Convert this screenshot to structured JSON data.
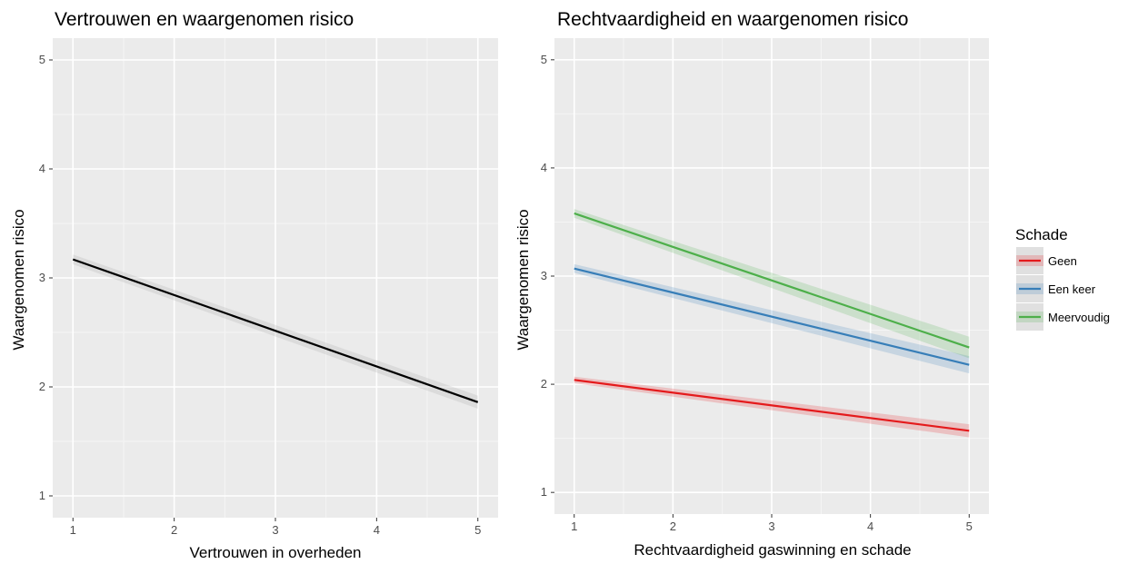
{
  "chart_data": [
    {
      "type": "line",
      "title": "Vertrouwen en waargenomen risico",
      "xlabel": "Vertrouwen in overheden",
      "ylabel": "Waargenomen risico",
      "xlim": [
        0.8,
        5.2
      ],
      "ylim": [
        0.8,
        5.2
      ],
      "xticks": [
        "1",
        "2",
        "3",
        "4",
        "5"
      ],
      "yticks": [
        "1",
        "2",
        "3",
        "4",
        "5"
      ],
      "grid": true,
      "series": [
        {
          "x": [
            1,
            5
          ],
          "y": [
            3.17,
            1.86
          ],
          "ci": [
            0.045,
            0.06
          ],
          "color": "#000000"
        }
      ]
    },
    {
      "type": "line",
      "title": "Rechtvaardigheid en waargenomen risico",
      "xlabel": "Rechtvaardigheid gaswinning en schade",
      "ylabel": "Waargenomen risico",
      "xlim": [
        0.8,
        5.2
      ],
      "ylim": [
        0.8,
        5.2
      ],
      "xticks": [
        "1",
        "2",
        "3",
        "4",
        "5"
      ],
      "yticks": [
        "1",
        "2",
        "3",
        "4",
        "5"
      ],
      "grid": true,
      "legend": {
        "title": "Schade",
        "position": "right",
        "entries": [
          "Geen",
          "Een keer",
          "Meervoudig"
        ]
      },
      "series": [
        {
          "name": "Geen",
          "x": [
            1,
            5
          ],
          "y": [
            2.04,
            1.57
          ],
          "ci": [
            0.03,
            0.06
          ],
          "color": "#e41a1c"
        },
        {
          "name": "Een keer",
          "x": [
            1,
            5
          ],
          "y": [
            3.07,
            2.18
          ],
          "ci": [
            0.04,
            0.08
          ],
          "color": "#377eb8"
        },
        {
          "name": "Meervoudig",
          "x": [
            1,
            5
          ],
          "y": [
            3.58,
            2.34
          ],
          "ci": [
            0.04,
            0.1
          ],
          "color": "#4daf4a"
        }
      ]
    }
  ]
}
